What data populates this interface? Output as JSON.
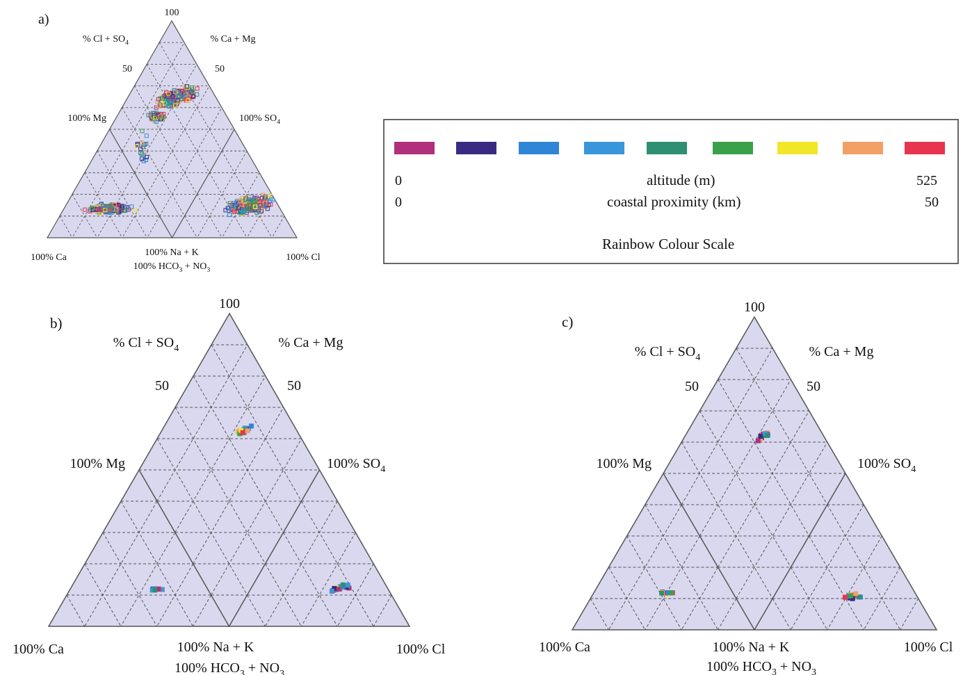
{
  "panels": {
    "a": {
      "label": "a)",
      "apex": "100",
      "left_axis": "% Cl + SO",
      "left_axis_sub": "4",
      "right_axis": "% Ca + Mg",
      "left_mid": "50",
      "right_mid": "50",
      "left_corner": "100% Mg",
      "right_corner": "100% SO",
      "right_corner_sub": "4",
      "bottom_left": "100% Ca",
      "bottom_right": "100% Cl",
      "bottom_mid_1": "100% Na + K",
      "bottom_mid_2_pre": "100% HCO",
      "bottom_mid_2_sub1": "3",
      "bottom_mid_2_mid": " + NO",
      "bottom_mid_2_sub2": "3"
    },
    "b": {
      "label": "b)",
      "apex": "100",
      "left_axis": "% Cl + SO",
      "left_axis_sub": "4",
      "right_axis": "% Ca + Mg",
      "left_mid": "50",
      "right_mid": "50",
      "left_corner": "100% Mg",
      "right_corner": "100% SO",
      "right_corner_sub": "4",
      "bottom_left": "100% Ca",
      "bottom_right": "100% Cl",
      "bottom_mid_1": "100% Na + K",
      "bottom_mid_2_pre": "100% HCO",
      "bottom_mid_2_sub1": "3",
      "bottom_mid_2_mid": " + NO",
      "bottom_mid_2_sub2": "3"
    },
    "c": {
      "label": "c)",
      "apex": "100",
      "left_axis": "% Cl + SO",
      "left_axis_sub": "4",
      "right_axis": "% Ca + Mg",
      "left_mid": "50",
      "right_mid": "50",
      "left_corner": "100% Mg",
      "right_corner": "100% SO",
      "right_corner_sub": "4",
      "bottom_left": "100% Ca",
      "bottom_right": "100% Cl",
      "bottom_mid_1": "100% Na + K",
      "bottom_mid_2_pre": "100% HCO",
      "bottom_mid_2_sub1": "3",
      "bottom_mid_2_mid": " + NO",
      "bottom_mid_2_sub2": "3"
    }
  },
  "legend": {
    "swatches": [
      "#b0307e",
      "#3a2a82",
      "#2f86d6",
      "#3a96db",
      "#2e8f72",
      "#3aa04a",
      "#f2e628",
      "#f2a066",
      "#e8344e"
    ],
    "altitude_label": "altitude (m)",
    "altitude_min": "0",
    "altitude_max": "525",
    "coastal_label": "coastal proximity (km)",
    "coastal_min": "0",
    "coastal_max": "50",
    "title": "Rainbow Colour Scale"
  },
  "colors": {
    "triangle_fill": "#d9d8ee",
    "line": "#555555",
    "grid": "#555555"
  }
}
